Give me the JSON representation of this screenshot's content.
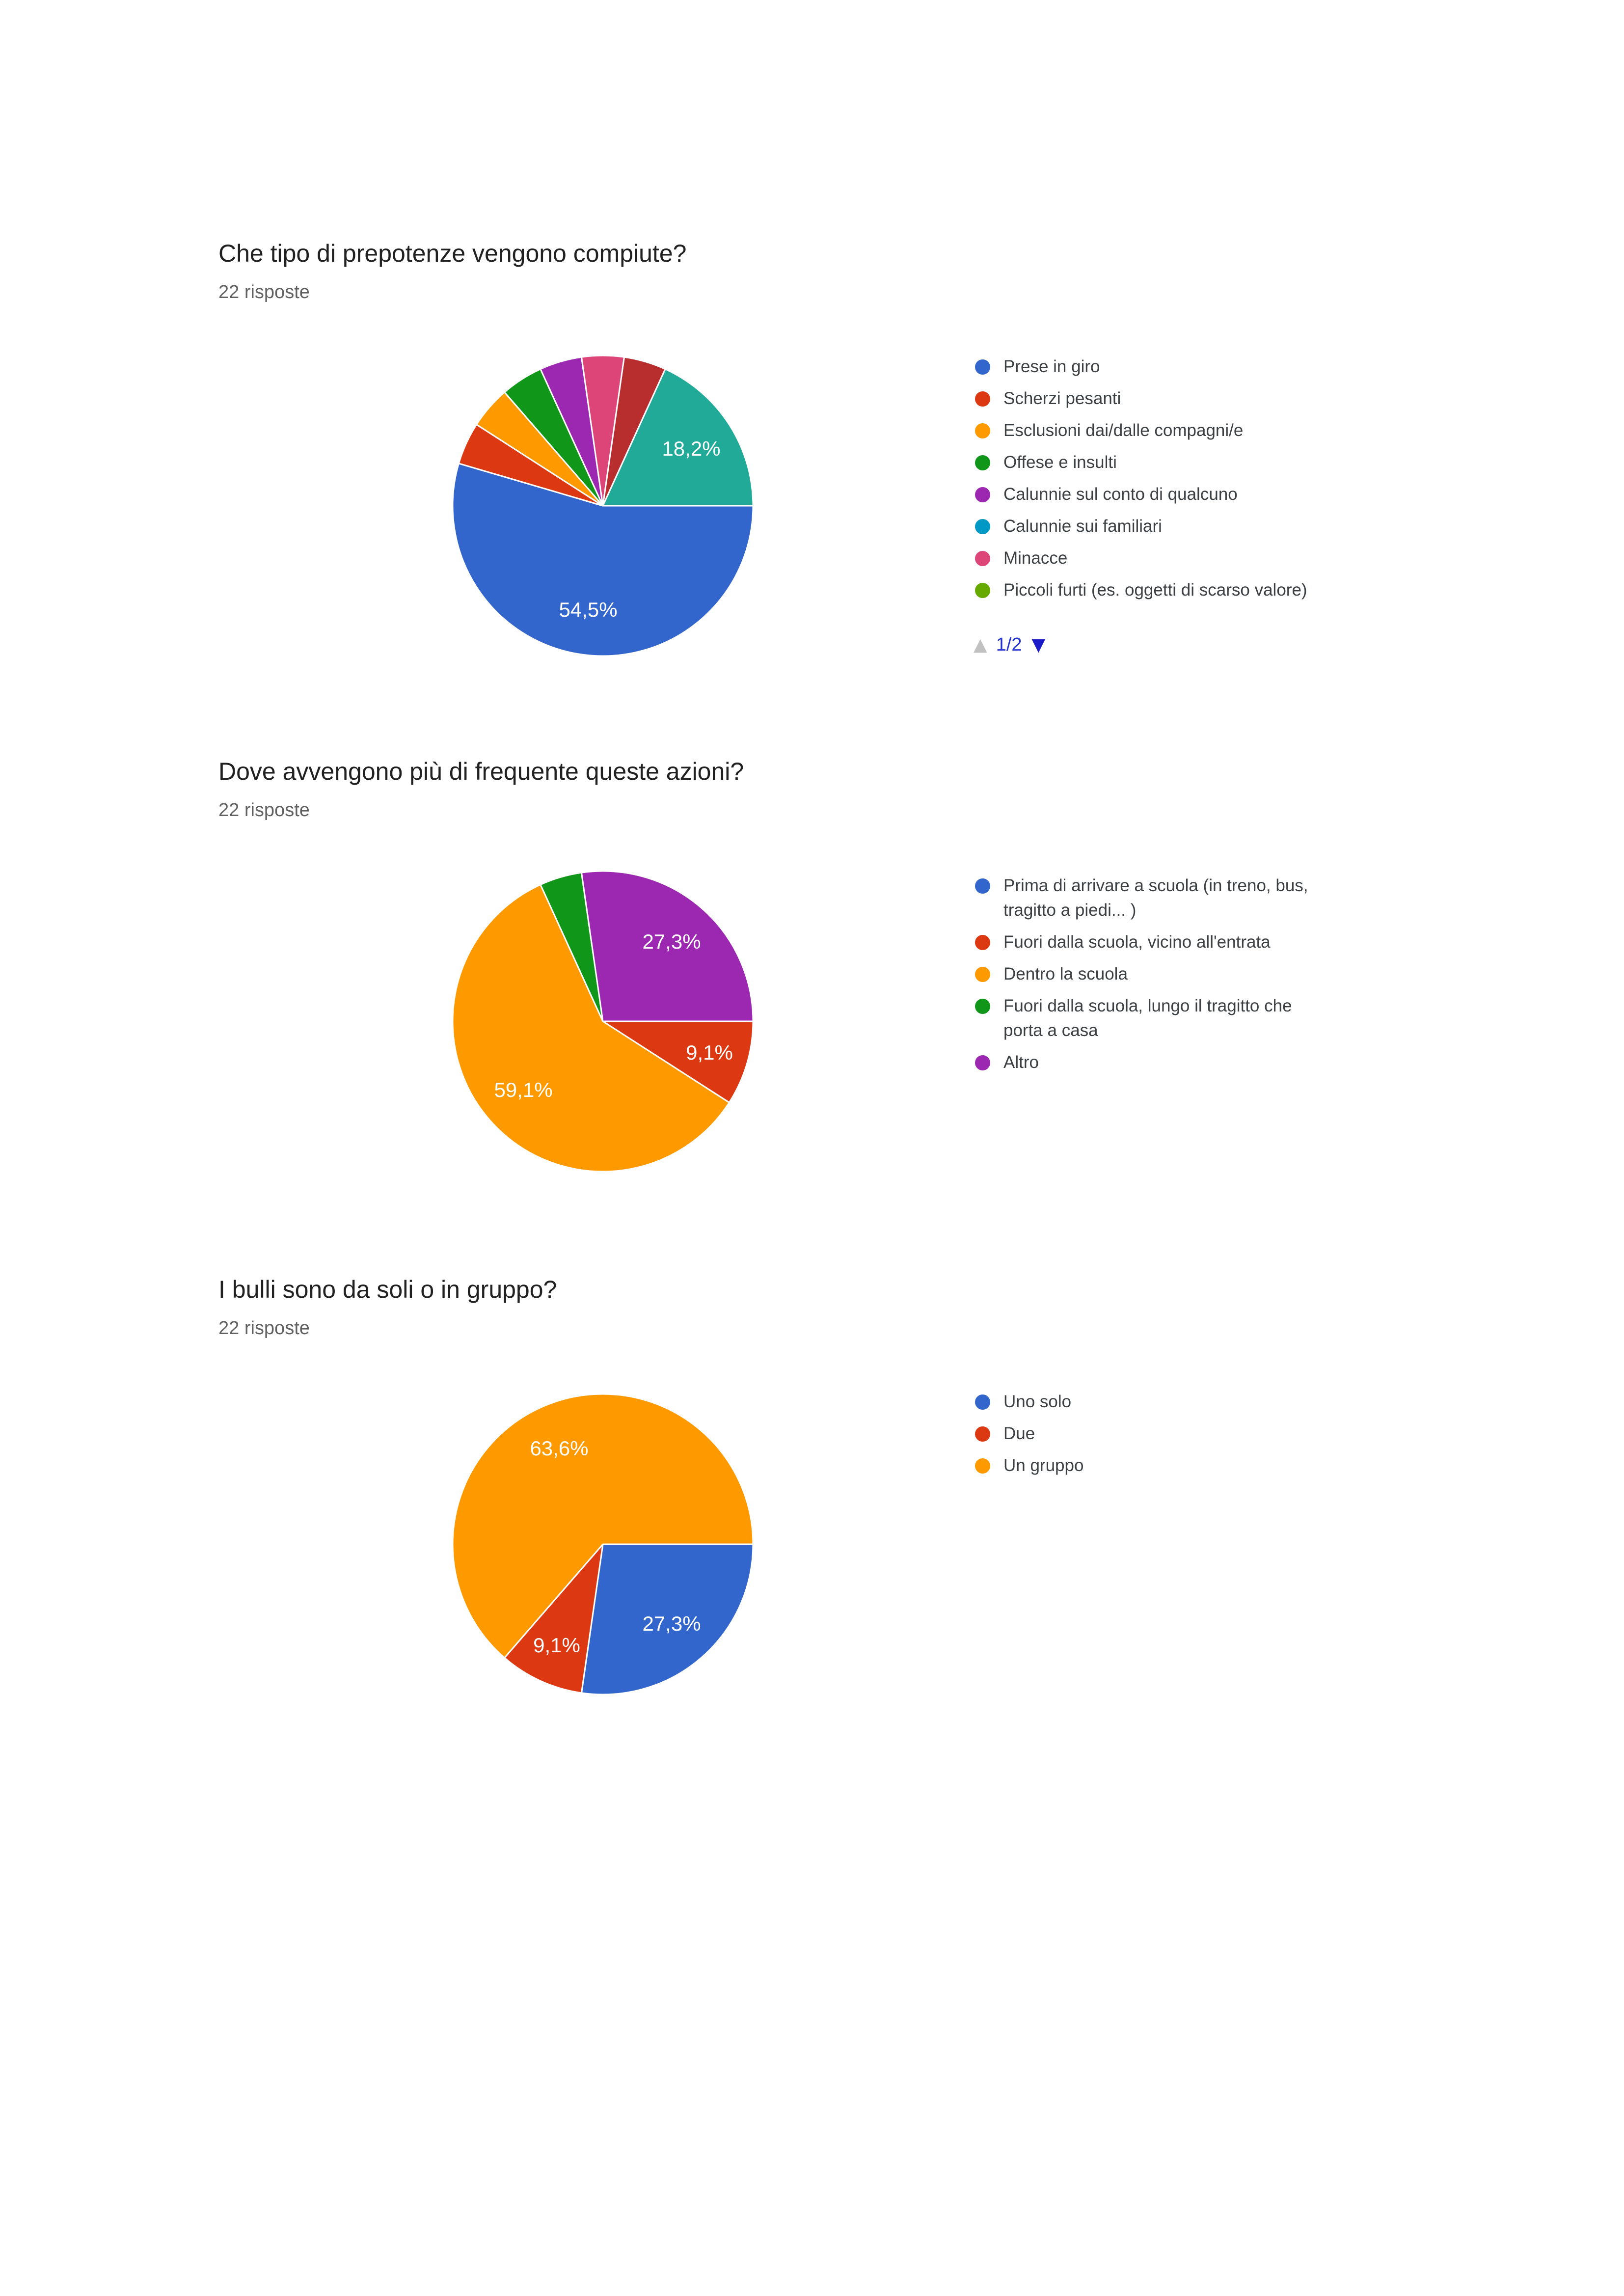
{
  "page": {
    "background": "#ffffff"
  },
  "palette": {
    "blue": "#3366CC",
    "red": "#DC3912",
    "orange": "#FF9900",
    "green": "#109618",
    "purple": "#9C27B0",
    "cyan": "#0099C6",
    "pink": "#DD4477",
    "olive": "#66AA00",
    "brick": "#B82E2E",
    "teal": "#22AA99"
  },
  "text_colors": {
    "title": "#212121",
    "subtitle": "#616161",
    "legend": "#3C4043",
    "slice_label": "#ffffff"
  },
  "sections": [
    {
      "title": "Che tipo di prepotenze vengono compiute?",
      "responses": "22 risposte",
      "legend": [
        {
          "color": "blue",
          "lines": [
            "Prese in giro"
          ]
        },
        {
          "color": "red",
          "lines": [
            "Scherzi pesanti"
          ]
        },
        {
          "color": "orange",
          "lines": [
            "Esclusioni dai/dalle compagni/e"
          ]
        },
        {
          "color": "green",
          "lines": [
            "Offese e insulti"
          ]
        },
        {
          "color": "purple",
          "lines": [
            "Calunnie sul conto di qualcuno"
          ]
        },
        {
          "color": "cyan",
          "lines": [
            "Calunnie sui familiari"
          ]
        },
        {
          "color": "pink",
          "lines": [
            "Minacce"
          ]
        },
        {
          "color": "olive",
          "lines": [
            "Piccoli furti (es. oggetti di scarso valore)"
          ]
        }
      ],
      "pagination": {
        "up": "▲",
        "current": "1/2",
        "down": "▼"
      },
      "chart_data": {
        "type": "pie",
        "start_angle_from_12_clock": 90,
        "direction": "clockwise",
        "slices": [
          {
            "color": "blue",
            "pct": 54.545,
            "label": "54,5%"
          },
          {
            "color": "red",
            "pct": 4.545
          },
          {
            "color": "orange",
            "pct": 4.545
          },
          {
            "color": "green",
            "pct": 4.545
          },
          {
            "color": "purple",
            "pct": 4.545
          },
          {
            "color": "pink",
            "pct": 4.545
          },
          {
            "color": "brick",
            "pct": 4.545
          },
          {
            "color": "teal",
            "pct": 18.182,
            "label": "18,2%"
          }
        ]
      }
    },
    {
      "title": "Dove avvengono più di frequente queste azioni?",
      "responses": "22 risposte",
      "legend": [
        {
          "color": "blue",
          "lines": [
            "Prima di arrivare a scuola (in treno, bus,",
            "tragitto a piedi... )"
          ]
        },
        {
          "color": "red",
          "lines": [
            "Fuori dalla scuola, vicino all'entrata"
          ]
        },
        {
          "color": "orange",
          "lines": [
            "Dentro la scuola"
          ]
        },
        {
          "color": "green",
          "lines": [
            "Fuori dalla scuola, lungo il tragitto che",
            "porta a casa"
          ]
        },
        {
          "color": "purple",
          "lines": [
            "Altro"
          ]
        }
      ],
      "chart_data": {
        "type": "pie",
        "start_angle_from_12_clock": 90,
        "direction": "clockwise",
        "slices": [
          {
            "color": "red",
            "pct": 9.091,
            "label": "9,1%"
          },
          {
            "color": "orange",
            "pct": 59.091,
            "label": "59,1%"
          },
          {
            "color": "green",
            "pct": 4.545
          },
          {
            "color": "purple",
            "pct": 27.273,
            "label": "27,3%"
          }
        ]
      }
    },
    {
      "title": "I bulli sono da soli o in gruppo?",
      "responses": "22 risposte",
      "legend": [
        {
          "color": "blue",
          "lines": [
            "Uno solo"
          ]
        },
        {
          "color": "red",
          "lines": [
            "Due"
          ]
        },
        {
          "color": "orange",
          "lines": [
            "Un gruppo"
          ]
        }
      ],
      "chart_data": {
        "type": "pie",
        "start_angle_from_12_clock": 90,
        "direction": "clockwise",
        "slices": [
          {
            "color": "blue",
            "pct": 27.273,
            "label": "27,3%"
          },
          {
            "color": "red",
            "pct": 9.091,
            "label": "9,1%"
          },
          {
            "color": "orange",
            "pct": 63.636,
            "label": "63,6%"
          }
        ]
      }
    }
  ]
}
